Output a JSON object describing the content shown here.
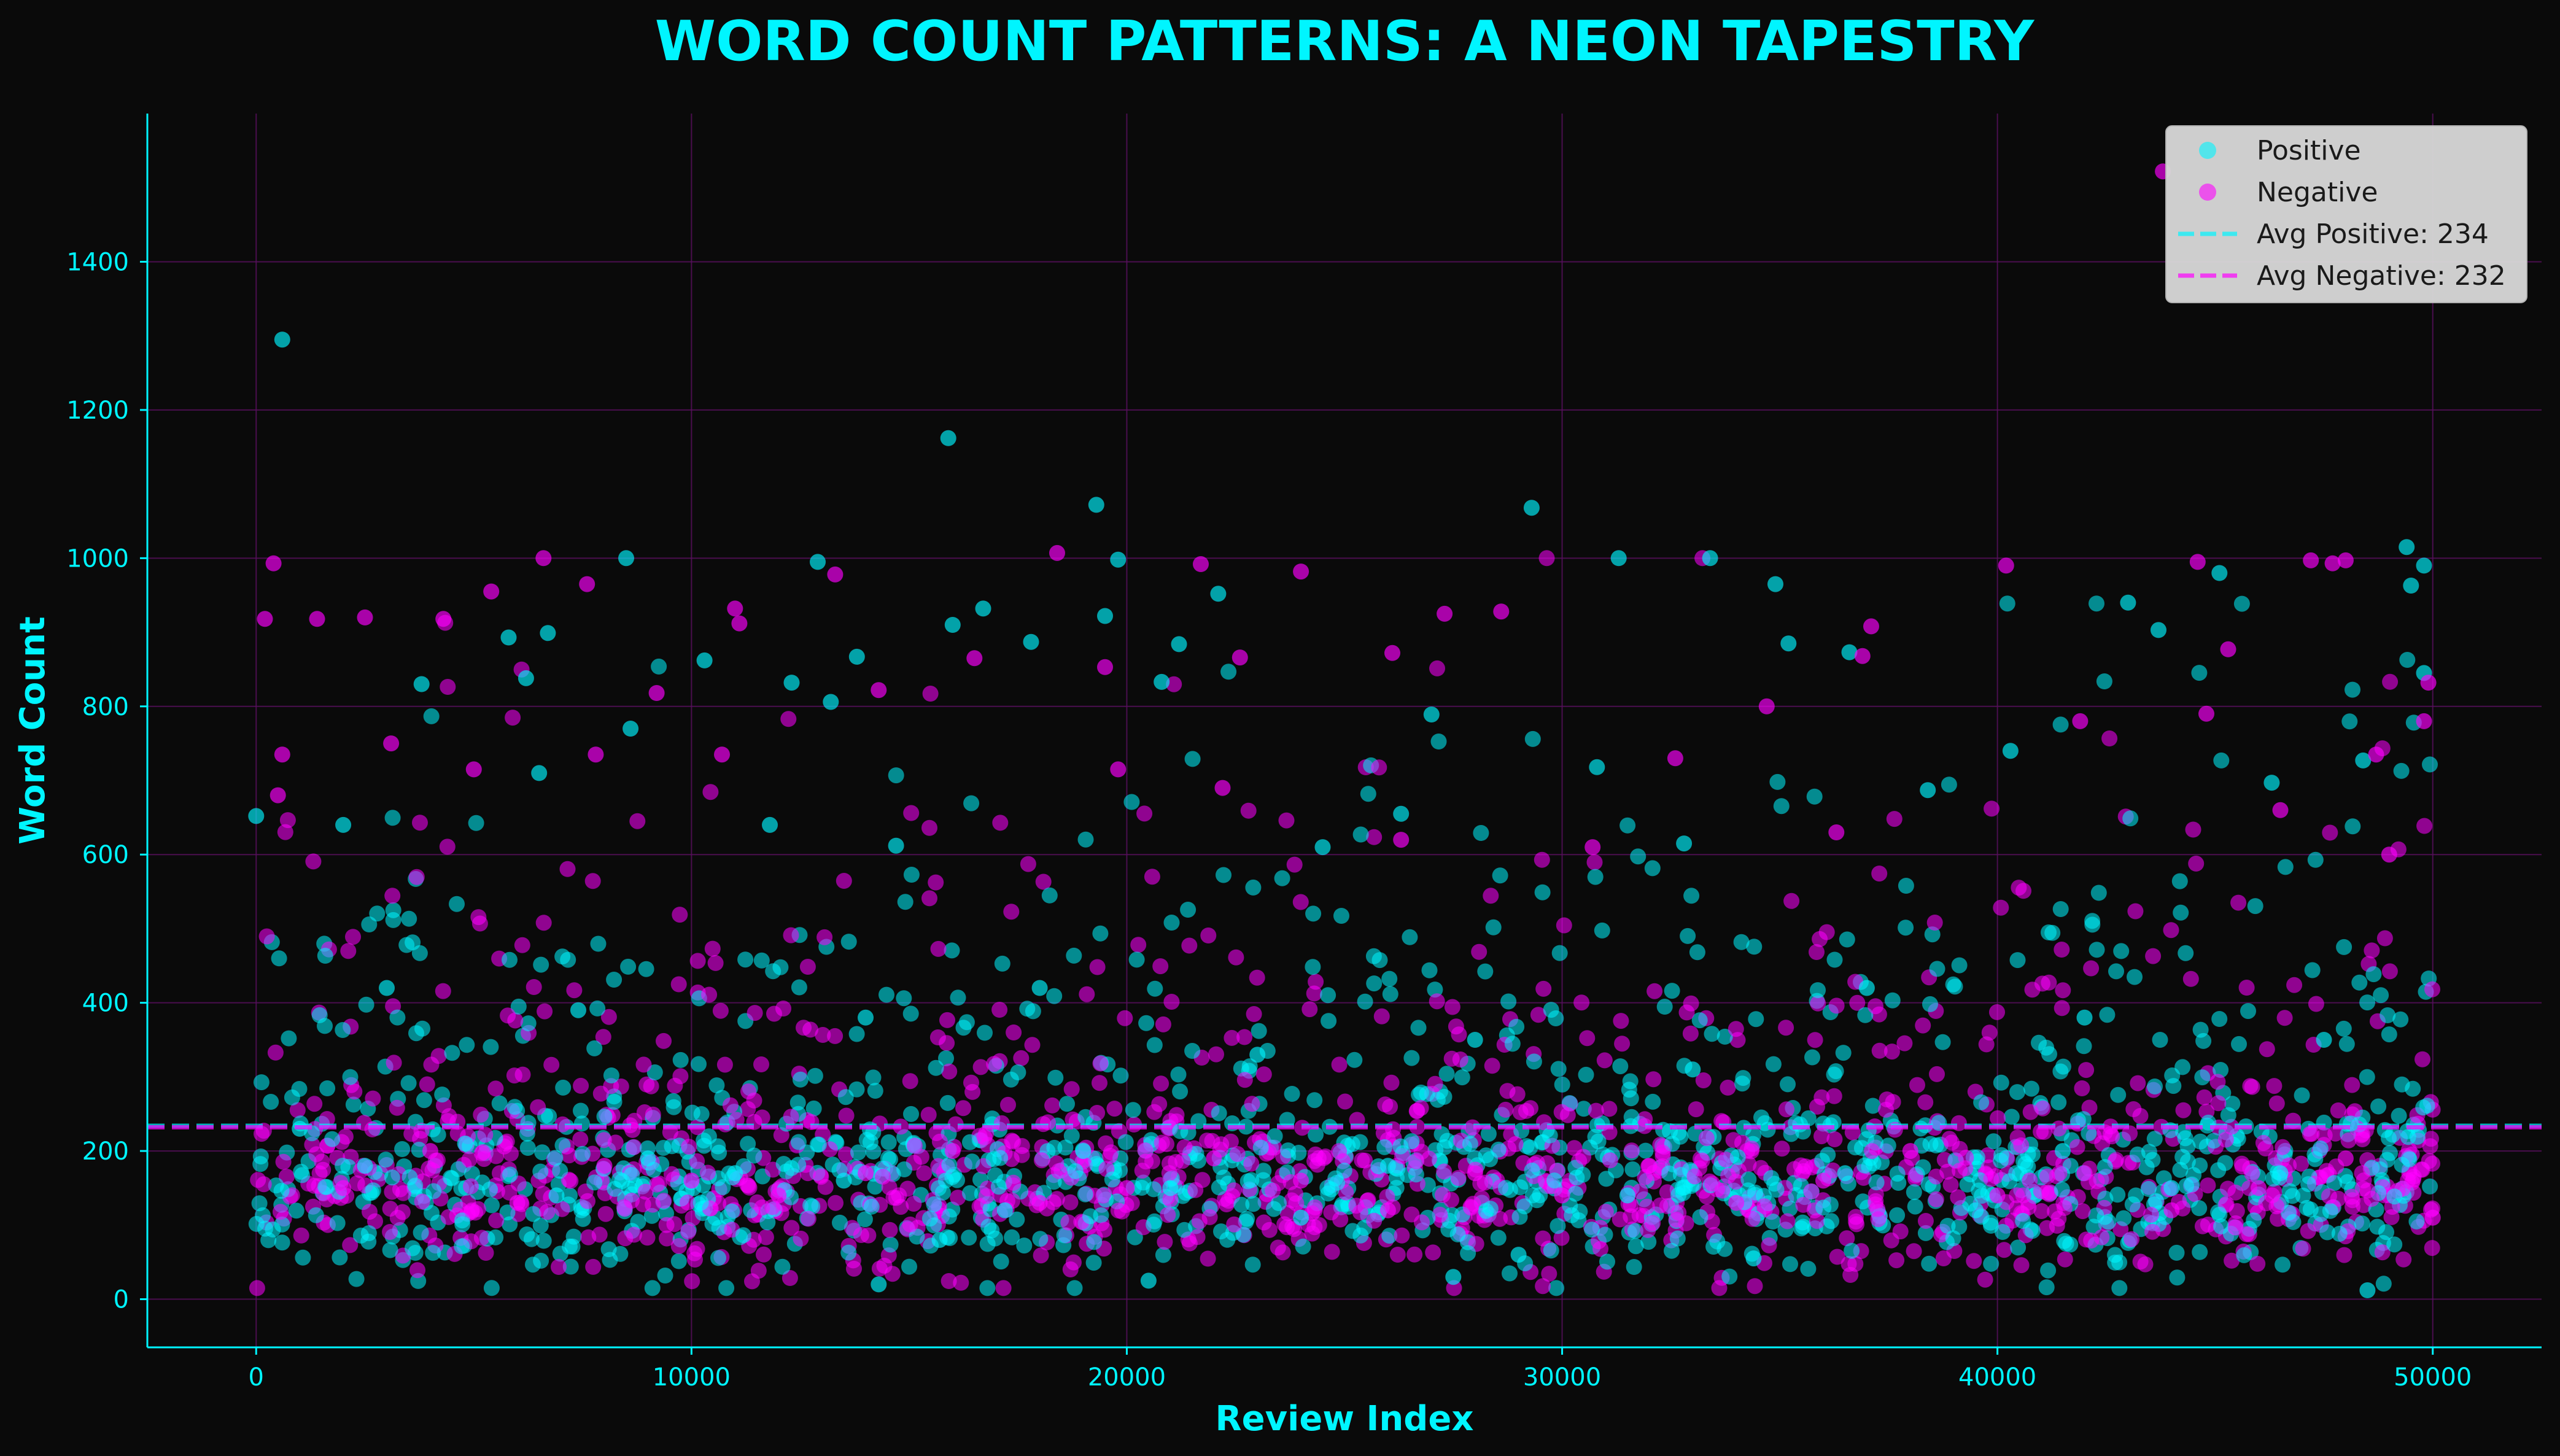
{
  "chart_data": {
    "type": "scatter",
    "title": "WORD COUNT PATTERNS: A NEON TAPESTRY",
    "xlabel": "Review Index",
    "ylabel": "Word Count",
    "xlim": [
      -2500,
      52500
    ],
    "ylim": [
      -65,
      1600
    ],
    "x_ticks": [
      0,
      10000,
      20000,
      30000,
      40000,
      50000
    ],
    "y_ticks": [
      0,
      200,
      400,
      600,
      800,
      1000,
      1200,
      1400
    ],
    "grid": true,
    "legend_placement": "top-right",
    "series": [
      {
        "name": "Positive",
        "color": "#00f5ff",
        "marker": "circle",
        "sampled_points": [
          [
            0,
            652
          ],
          [
            600,
            1295
          ],
          [
            3800,
            830
          ],
          [
            5800,
            893
          ],
          [
            6200,
            838
          ],
          [
            6700,
            899
          ],
          [
            8500,
            1000
          ],
          [
            8600,
            770
          ],
          [
            10300,
            862
          ],
          [
            12300,
            832
          ],
          [
            12900,
            995
          ],
          [
            13200,
            806
          ],
          [
            13800,
            867
          ],
          [
            15900,
            1162
          ],
          [
            16000,
            910
          ],
          [
            16700,
            932
          ],
          [
            17800,
            887
          ],
          [
            19300,
            1072
          ],
          [
            19500,
            922
          ],
          [
            19800,
            998
          ],
          [
            20800,
            833
          ],
          [
            21200,
            884
          ],
          [
            22100,
            952
          ],
          [
            27000,
            789
          ],
          [
            29300,
            1068
          ],
          [
            31300,
            1000
          ],
          [
            33400,
            1000
          ],
          [
            34900,
            965
          ],
          [
            35200,
            885
          ],
          [
            36600,
            873
          ],
          [
            43000,
            940
          ],
          [
            43700,
            903
          ],
          [
            45100,
            980
          ],
          [
            49400,
            1015
          ],
          [
            49500,
            963
          ],
          [
            49800,
            990
          ],
          [
            49800,
            845
          ],
          [
            2000,
            640
          ],
          [
            6500,
            710
          ],
          [
            11800,
            640
          ],
          [
            14700,
            612
          ],
          [
            24500,
            610
          ],
          [
            26300,
            655
          ],
          [
            30800,
            718
          ],
          [
            32800,
            615
          ],
          [
            38400,
            687
          ],
          [
            40300,
            740
          ],
          [
            46300,
            697
          ],
          [
            48400,
            727
          ],
          [
            3000,
            420
          ],
          [
            7400,
            390
          ],
          [
            14000,
            380
          ],
          [
            18000,
            420
          ],
          [
            23000,
            330
          ],
          [
            28000,
            350
          ],
          [
            33000,
            310
          ],
          [
            37000,
            420
          ],
          [
            42000,
            380
          ],
          [
            47500,
            350
          ],
          [
            1000,
            230
          ],
          [
            2500,
            180
          ],
          [
            4800,
            210
          ],
          [
            6900,
            140
          ],
          [
            9000,
            190
          ],
          [
            11000,
            170
          ],
          [
            13500,
            160
          ],
          [
            15700,
            80
          ],
          [
            17200,
            120
          ],
          [
            19000,
            200
          ],
          [
            21000,
            150
          ],
          [
            24000,
            110
          ],
          [
            26000,
            180
          ],
          [
            29000,
            60
          ],
          [
            31500,
            140
          ],
          [
            34400,
            55
          ],
          [
            36500,
            170
          ],
          [
            39500,
            120
          ],
          [
            41500,
            200
          ],
          [
            44000,
            150
          ],
          [
            46500,
            170
          ],
          [
            48500,
            12
          ],
          [
            14300,
            20
          ],
          [
            20500,
            25
          ],
          [
            27500,
            30
          ]
        ]
      },
      {
        "name": "Negative",
        "color": "#ff00ff",
        "marker": "circle",
        "sampled_points": [
          [
            200,
            918
          ],
          [
            400,
            993
          ],
          [
            600,
            735
          ],
          [
            500,
            680
          ],
          [
            1400,
            918
          ],
          [
            2500,
            920
          ],
          [
            4300,
            918
          ],
          [
            5400,
            955
          ],
          [
            6600,
            1000
          ],
          [
            7600,
            965
          ],
          [
            9200,
            818
          ],
          [
            11000,
            932
          ],
          [
            11100,
            912
          ],
          [
            13300,
            978
          ],
          [
            14300,
            822
          ],
          [
            16500,
            865
          ],
          [
            18400,
            1007
          ],
          [
            19500,
            853
          ],
          [
            21700,
            992
          ],
          [
            22600,
            866
          ],
          [
            24000,
            982
          ],
          [
            26100,
            872
          ],
          [
            27300,
            925
          ],
          [
            28600,
            928
          ],
          [
            36900,
            868
          ],
          [
            37100,
            908
          ],
          [
            40200,
            990
          ],
          [
            43800,
            1522
          ],
          [
            44600,
            995
          ],
          [
            45300,
            877
          ],
          [
            47200,
            997
          ],
          [
            47700,
            993
          ],
          [
            48000,
            997
          ],
          [
            48700,
            735
          ],
          [
            49900,
            832
          ],
          [
            49800,
            780
          ],
          [
            3100,
            750
          ],
          [
            5000,
            715
          ],
          [
            7800,
            735
          ],
          [
            10700,
            735
          ],
          [
            19800,
            715
          ],
          [
            22200,
            690
          ],
          [
            26300,
            620
          ],
          [
            30700,
            610
          ],
          [
            32600,
            730
          ],
          [
            34700,
            800
          ],
          [
            36300,
            630
          ],
          [
            41900,
            780
          ],
          [
            44800,
            790
          ],
          [
            46500,
            660
          ],
          [
            49000,
            600
          ],
          [
            2000,
            150
          ],
          [
            4000,
            200
          ],
          [
            6000,
            130
          ],
          [
            8000,
            180
          ],
          [
            10000,
            160
          ],
          [
            12000,
            140
          ],
          [
            14000,
            170
          ],
          [
            16000,
            200
          ],
          [
            18000,
            130
          ],
          [
            20000,
            150
          ],
          [
            22000,
            190
          ],
          [
            24000,
            160
          ],
          [
            26000,
            120
          ],
          [
            28000,
            170
          ],
          [
            30000,
            140
          ],
          [
            32000,
            180
          ],
          [
            34000,
            130
          ],
          [
            36000,
            160
          ],
          [
            38000,
            200
          ],
          [
            40000,
            140
          ],
          [
            42000,
            170
          ],
          [
            44000,
            120
          ],
          [
            46000,
            150
          ],
          [
            48000,
            190
          ],
          [
            50000,
            110
          ]
        ]
      }
    ],
    "reference_lines": [
      {
        "label": "Avg Positive: 234",
        "y": 234,
        "color": "#00f5ff",
        "style": "dashed"
      },
      {
        "label": "Avg Negative: 232",
        "y": 232,
        "color": "#ff00ff",
        "style": "dashed"
      }
    ]
  }
}
